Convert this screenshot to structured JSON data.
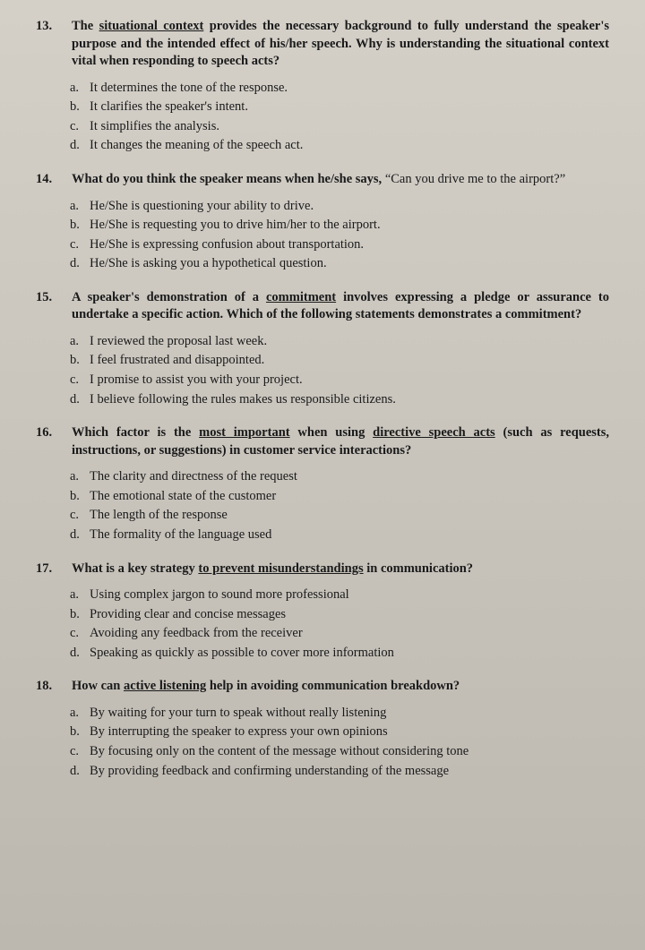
{
  "questions": [
    {
      "number": "13.",
      "stem_pre": "The ",
      "stem_u1": "situational context",
      "stem_post": " provides the necessary background to fully understand the speaker's purpose and the intended effect of his/her speech. Why is understanding the situational context vital when responding to speech acts?",
      "options": [
        {
          "l": "a.",
          "t": "It determines the tone of the response."
        },
        {
          "l": "b.",
          "t": "It clarifies the speaker's intent."
        },
        {
          "l": "c.",
          "t": "It simplifies the analysis."
        },
        {
          "l": "d.",
          "t": "It changes the meaning of the speech act."
        }
      ]
    },
    {
      "number": "14.",
      "stem_pre": "What do you think the speaker means when he/she says, ",
      "stem_quote": "“Can you drive me to the airport?”",
      "options": [
        {
          "l": "a.",
          "t": "He/She is questioning your ability to drive."
        },
        {
          "l": "b.",
          "t": "He/She is requesting you to drive him/her to the airport."
        },
        {
          "l": "c.",
          "t": "He/She is expressing confusion about transportation."
        },
        {
          "l": "d.",
          "t": "He/She is asking you a hypothetical question."
        }
      ]
    },
    {
      "number": "15.",
      "stem_pre": "A speaker's demonstration of a ",
      "stem_u1": "commitment",
      "stem_post": " involves expressing a pledge or assurance to undertake a specific action. Which of the following statements demonstrates a commitment?",
      "options": [
        {
          "l": "a.",
          "t": "I reviewed the proposal last week."
        },
        {
          "l": "b.",
          "t": "I feel frustrated and disappointed."
        },
        {
          "l": "c.",
          "t": "I promise to assist you with your project."
        },
        {
          "l": "d.",
          "t": "I believe following the rules makes us responsible citizens."
        }
      ]
    },
    {
      "number": "16.",
      "stem_pre": "Which factor is the ",
      "stem_u1": "most important",
      "stem_mid": " when using ",
      "stem_u2": "directive speech acts",
      "stem_post": " (such as requests, instructions, or suggestions) in customer service interactions?",
      "options": [
        {
          "l": "a.",
          "t": "The clarity and directness of the request"
        },
        {
          "l": "b.",
          "t": "The emotional state of the customer"
        },
        {
          "l": "c.",
          "t": "The length of the response"
        },
        {
          "l": "d.",
          "t": "The formality of the language used"
        }
      ]
    },
    {
      "number": "17.",
      "stem_pre": "What is a key strategy ",
      "stem_u1": "to prevent misunderstandings",
      "stem_post": " in communication?",
      "options": [
        {
          "l": "a.",
          "t": "Using complex jargon to sound more professional"
        },
        {
          "l": "b.",
          "t": "Providing clear and concise messages"
        },
        {
          "l": "c.",
          "t": "Avoiding any feedback from the receiver"
        },
        {
          "l": "d.",
          "t": "Speaking as quickly as possible to cover more information"
        }
      ]
    },
    {
      "number": "18.",
      "stem_pre": "How can ",
      "stem_u1": "active listening",
      "stem_post": " help in avoiding communication breakdown?",
      "options": [
        {
          "l": "a.",
          "t": "By waiting for your turn to speak without really listening"
        },
        {
          "l": "b.",
          "t": "By interrupting the speaker to express your own opinions"
        },
        {
          "l": "c.",
          "t": "By focusing only on the content of the message without considering tone"
        },
        {
          "l": "d.",
          "t": "By providing feedback and confirming understanding of the message"
        }
      ]
    }
  ]
}
